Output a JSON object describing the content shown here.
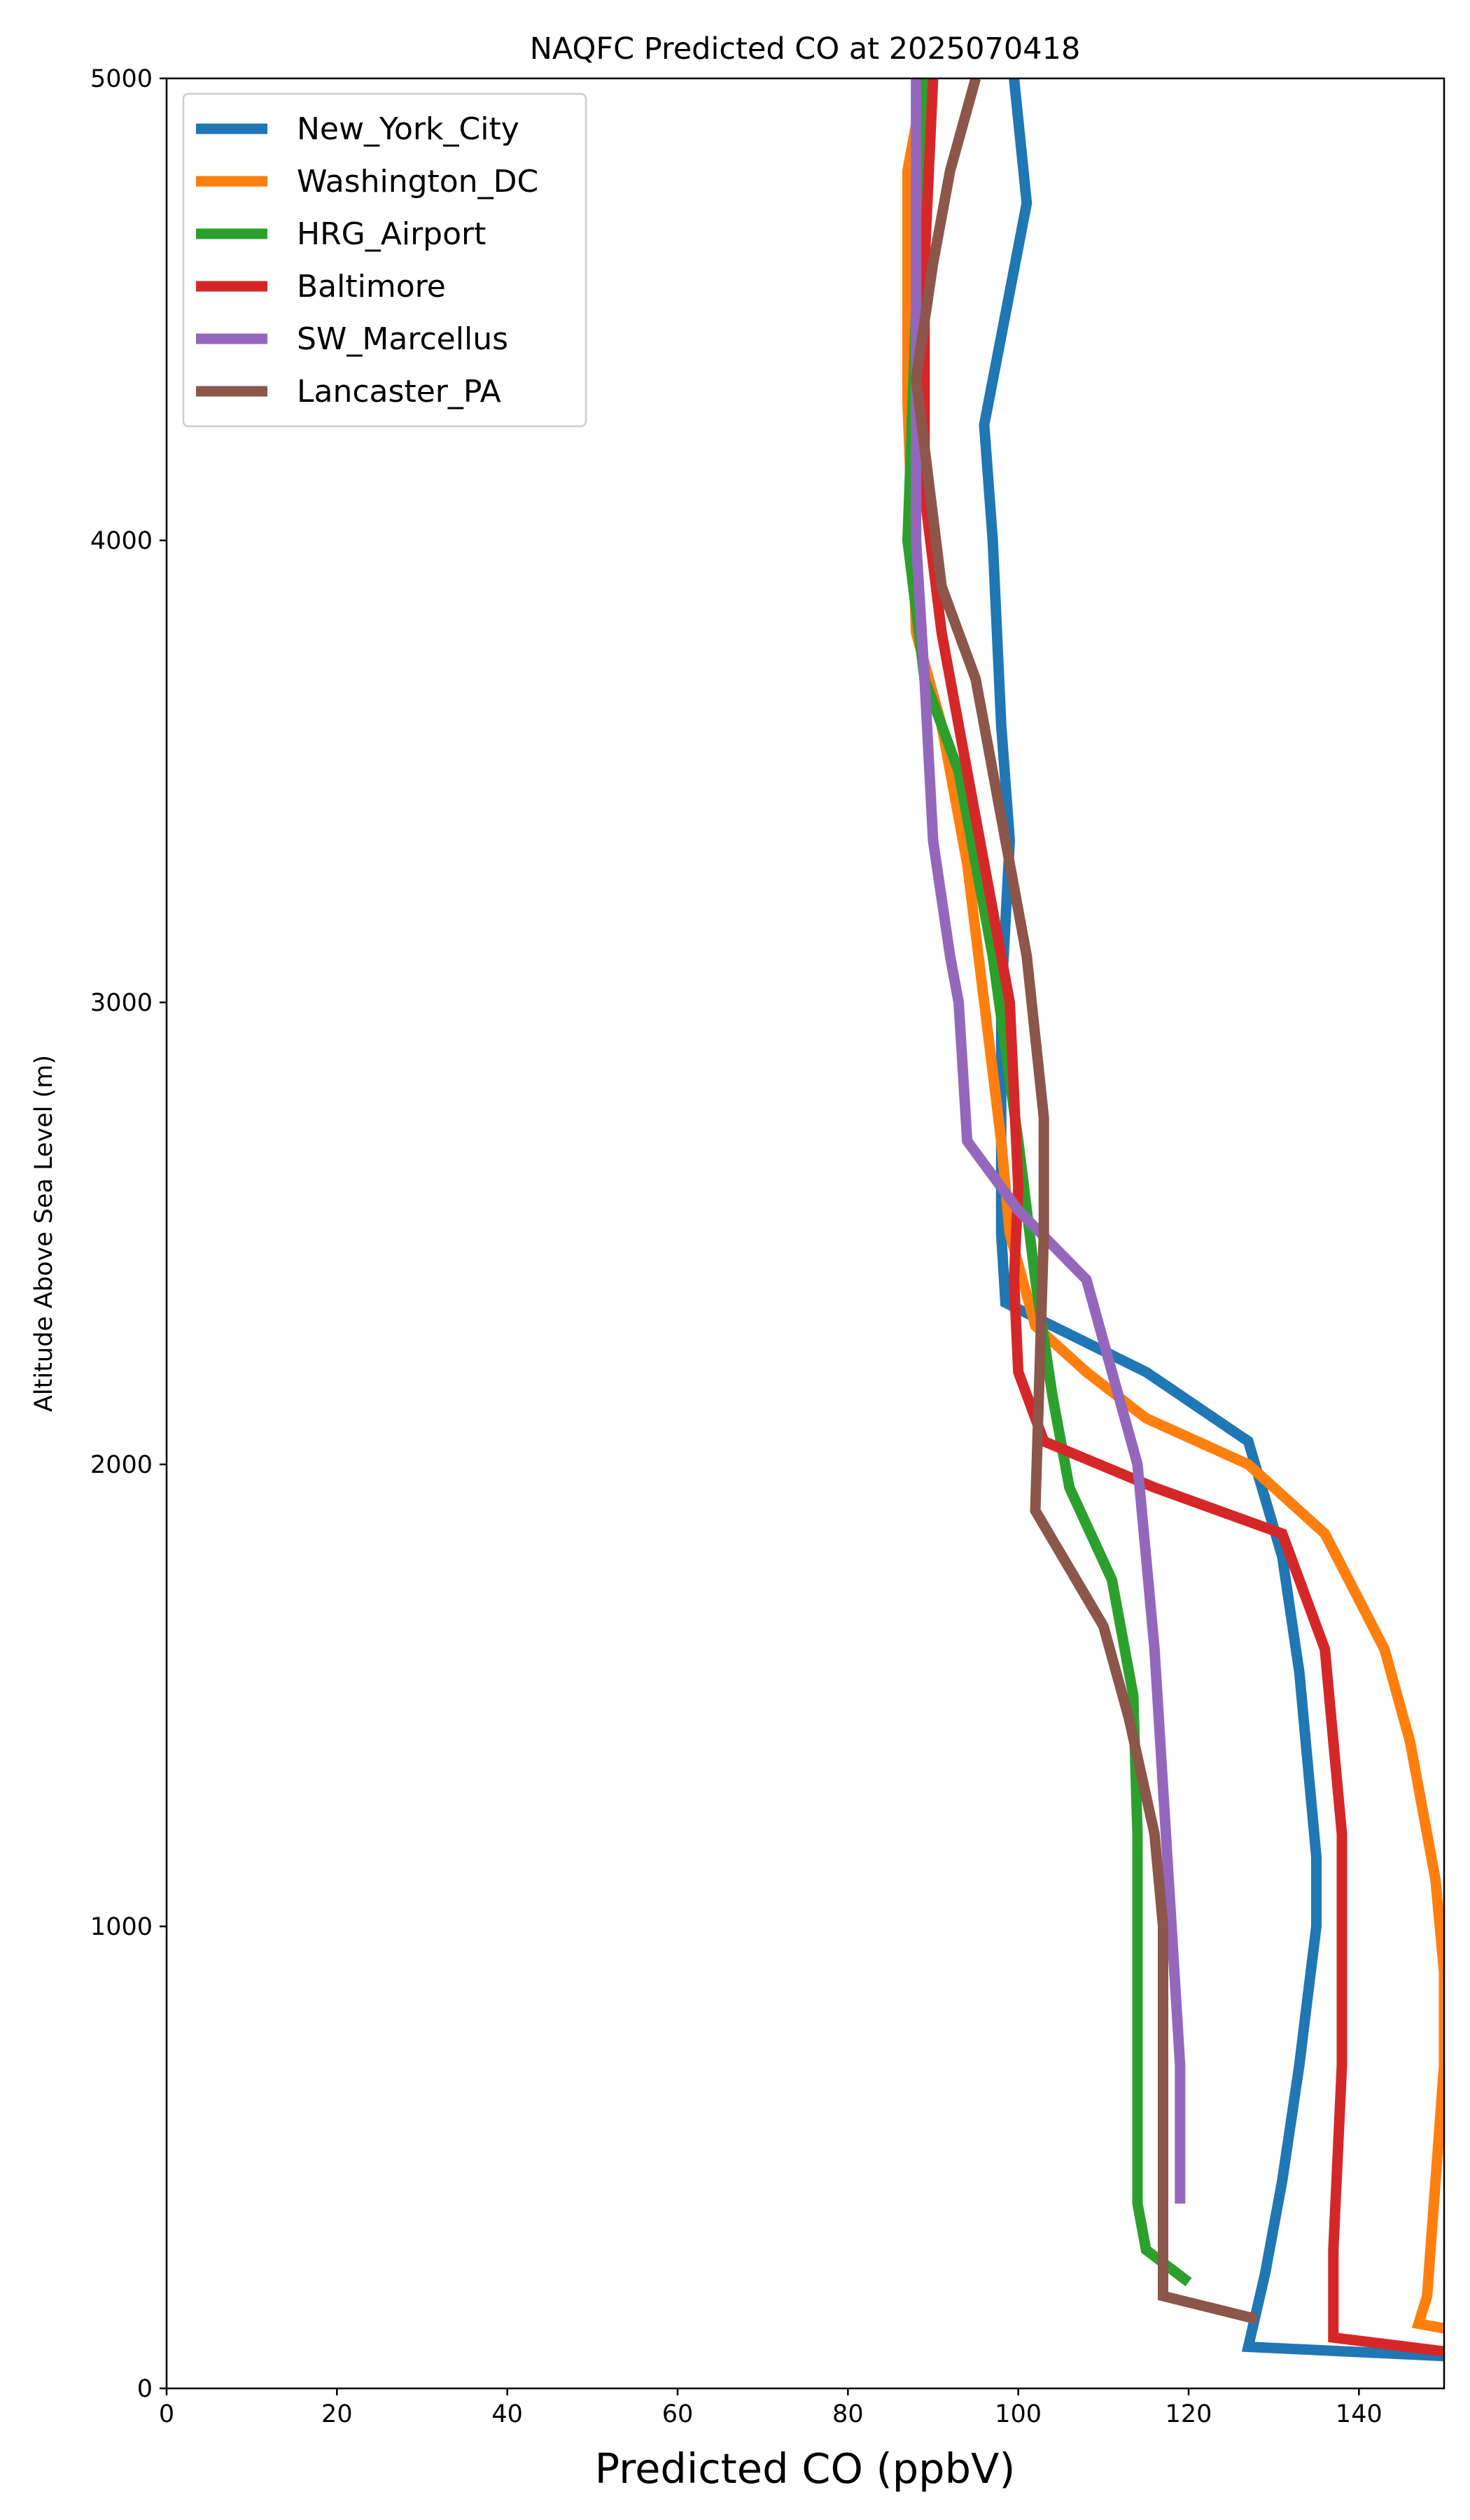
{
  "chart_data": {
    "type": "line",
    "title": "NAQFC Predicted CO at 2025070418",
    "xlabel": "Predicted CO (ppbV)",
    "ylabel": "Altitude Above Sea Level (m)",
    "xlim": [
      0,
      150
    ],
    "ylim": [
      0,
      5000
    ],
    "xticks": [
      0,
      20,
      40,
      60,
      80,
      100,
      120,
      140
    ],
    "yticks": [
      0,
      1000,
      2000,
      3000,
      4000,
      5000
    ],
    "grid": false,
    "legend": {
      "position": "top-left",
      "entries": [
        "New_York_City",
        "Washington_DC",
        "HRG_Airport",
        "Baltimore",
        "SW_Marcellus",
        "Lancaster_PA"
      ]
    },
    "series": [
      {
        "name": "New_York_City",
        "color": "#1f77b4",
        "x": [
          150,
          127,
          129,
          131,
          133,
          134,
          135,
          135,
          134,
          133,
          131,
          127,
          115,
          98.5,
          98,
          98,
          98,
          99,
          98,
          97,
          96,
          101,
          99.5
        ],
        "y": [
          70,
          90,
          250,
          450,
          700,
          850,
          1000,
          1150,
          1350,
          1550,
          1800,
          2050,
          2200,
          2350,
          2500,
          2800,
          3000,
          3350,
          3600,
          4000,
          4250,
          4730,
          5000
        ]
      },
      {
        "name": "Washington_DC",
        "color": "#ff7f0e",
        "x": [
          150,
          147,
          148,
          149,
          150,
          150,
          149,
          148,
          146,
          143,
          136,
          127,
          115,
          108,
          102,
          99,
          98,
          96,
          94,
          91,
          88,
          87,
          87,
          89
        ],
        "y": [
          130,
          140,
          200,
          450,
          700,
          900,
          1100,
          1200,
          1400,
          1600,
          1850,
          2000,
          2100,
          2200,
          2300,
          2500,
          2700,
          3000,
          3300,
          3600,
          3800,
          4300,
          4800,
          5000
        ]
      },
      {
        "name": "HRG_Airport",
        "color": "#2ca02c",
        "x": [
          120,
          115,
          114,
          114,
          114,
          114,
          113.5,
          111,
          106,
          104,
          102,
          100,
          97,
          93,
          89,
          87,
          88,
          89
        ],
        "y": [
          230,
          300,
          400,
          600,
          800,
          1200,
          1500,
          1750,
          1950,
          2150,
          2400,
          2700,
          3100,
          3500,
          3700,
          4000,
          4500,
          5000
        ]
      },
      {
        "name": "Baltimore",
        "color": "#d62728",
        "x": [
          150,
          137,
          137,
          138,
          138,
          138,
          137,
          136,
          131,
          116,
          103,
          100,
          99.5,
          100,
          99,
          95,
          91,
          89,
          89,
          90
        ],
        "y": [
          80,
          110,
          300,
          700,
          1000,
          1200,
          1400,
          1600,
          1850,
          1950,
          2050,
          2200,
          2400,
          2600,
          3000,
          3400,
          3800,
          4100,
          4600,
          5000
        ]
      },
      {
        "name": "SW_Marcellus",
        "color": "#9467bd",
        "x": [
          119,
          119,
          118,
          117,
          116,
          115,
          114,
          111,
          108,
          100,
          94,
          93,
          92,
          90,
          89,
          88,
          88,
          88,
          88
        ],
        "y": [
          400,
          700,
          1000,
          1300,
          1600,
          1800,
          2000,
          2200,
          2400,
          2550,
          2700,
          3000,
          3100,
          3350,
          3700,
          4000,
          4400,
          4800,
          5000
        ]
      },
      {
        "name": "Lancaster_PA",
        "color": "#8c564b",
        "x": [
          128,
          117,
          117,
          117,
          117,
          116,
          113,
          110,
          102,
          102.5,
          103,
          103,
          101,
          98,
          95,
          91,
          88,
          90,
          92,
          95
        ],
        "y": [
          150,
          200,
          400,
          700,
          1000,
          1200,
          1450,
          1650,
          1900,
          2200,
          2500,
          2750,
          3100,
          3400,
          3700,
          3900,
          4350,
          4600,
          4800,
          5000
        ]
      }
    ]
  }
}
